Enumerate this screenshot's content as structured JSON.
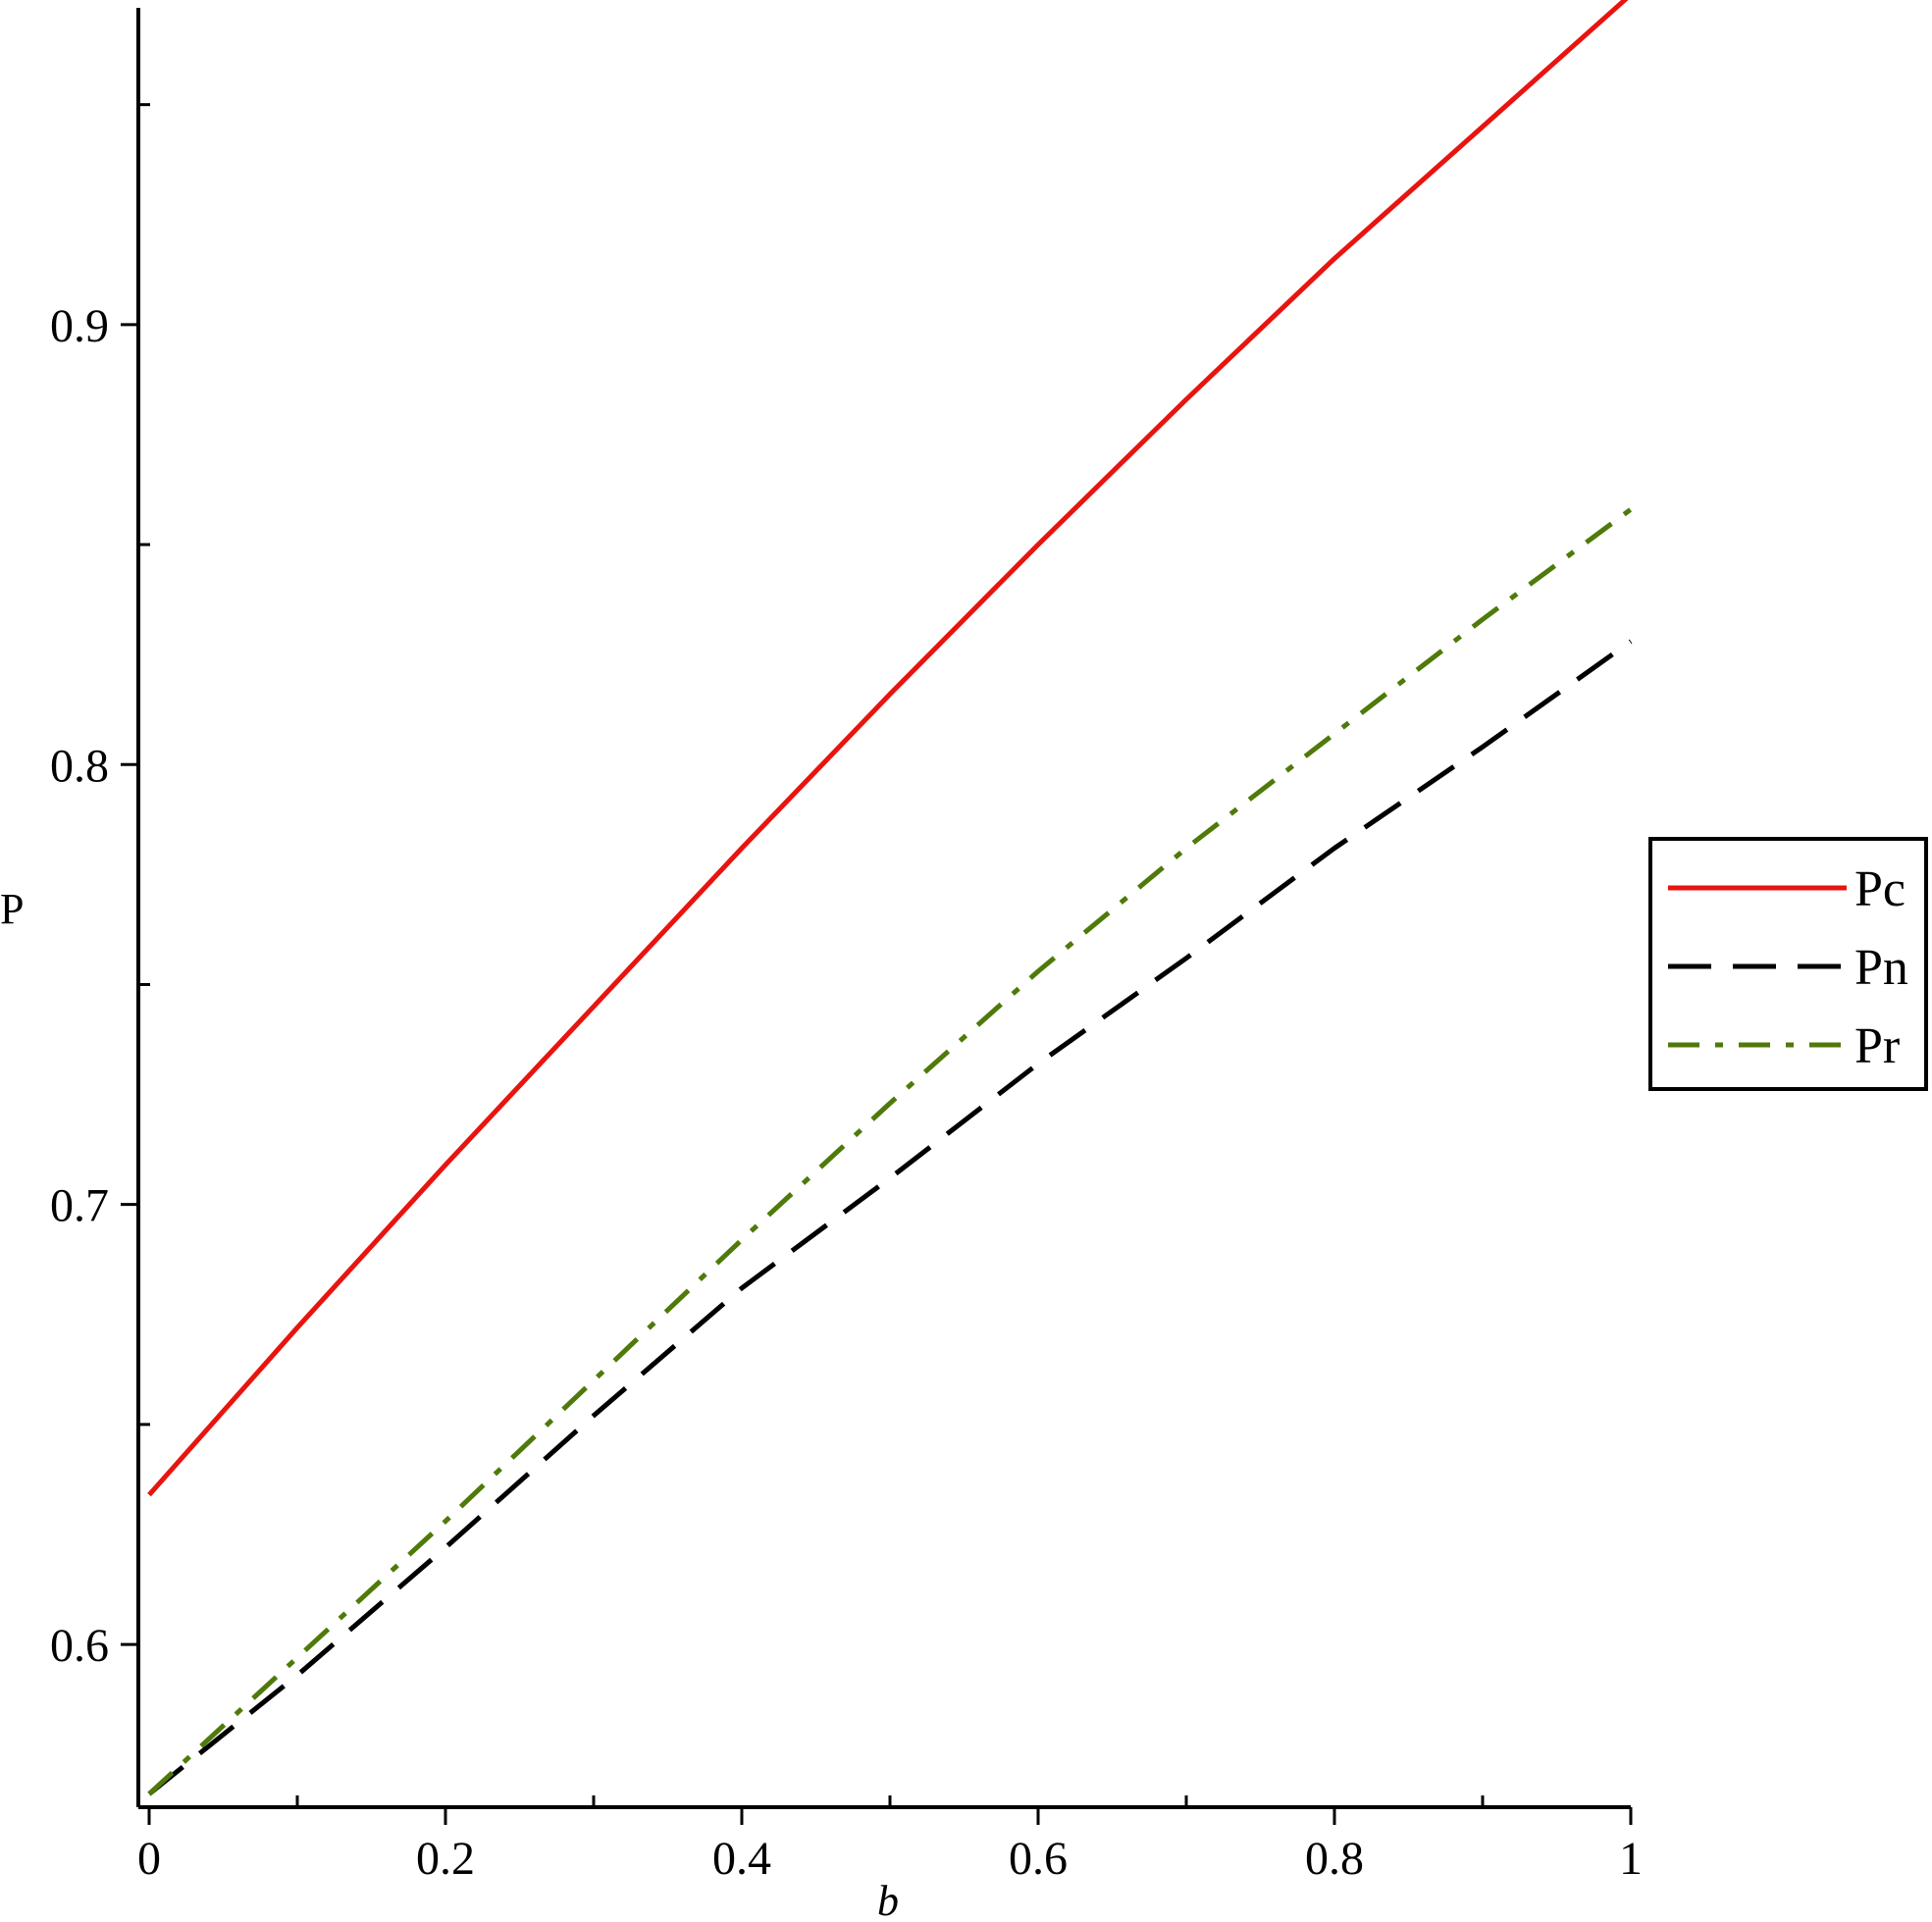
{
  "chart_data": {
    "type": "line",
    "title": "",
    "xlabel": "b",
    "ylabel": "P",
    "xlim": [
      0,
      1
    ],
    "ylim": [
      0.563,
      0.972
    ],
    "x_ticks": [
      0,
      0.2,
      0.4,
      0.6,
      0.8,
      1
    ],
    "x_tick_labels": [
      "0",
      "0.2",
      "0.4",
      "0.6",
      "0.8",
      "1"
    ],
    "x_minor_ticks": [
      0.1,
      0.3,
      0.5,
      0.7,
      0.9
    ],
    "y_ticks": [
      0.6,
      0.7,
      0.8,
      0.9
    ],
    "y_tick_labels": [
      "0.6",
      "0.7",
      "0.8",
      "0.9"
    ],
    "y_minor_ticks": [
      0.65,
      0.75,
      0.85,
      0.95
    ],
    "grid": false,
    "legend_position": "right",
    "x": [
      0,
      0.1,
      0.2,
      0.3,
      0.4,
      0.5,
      0.6,
      0.7,
      0.8,
      0.9,
      1
    ],
    "series": [
      {
        "name": "Pc",
        "color": "#e8140f",
        "style": "solid",
        "values": [
          0.634,
          0.672,
          0.709,
          0.745,
          0.781,
          0.816,
          0.85,
          0.883,
          0.915,
          0.945,
          0.975
        ]
      },
      {
        "name": "Pn",
        "color": "#000000",
        "style": "dash",
        "values": [
          0.566,
          0.593,
          0.622,
          0.652,
          0.681,
          0.706,
          0.732,
          0.756,
          0.781,
          0.804,
          0.828
        ]
      },
      {
        "name": "Pr",
        "color": "#4f7a0a",
        "style": "dashdot",
        "values": [
          0.566,
          0.597,
          0.628,
          0.66,
          0.692,
          0.723,
          0.753,
          0.781,
          0.807,
          0.833,
          0.858
        ]
      }
    ]
  }
}
